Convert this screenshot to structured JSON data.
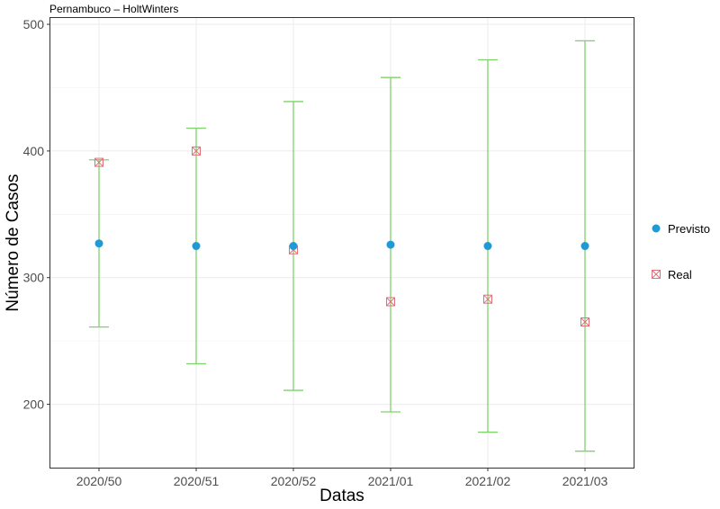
{
  "chart_data": {
    "type": "scatter",
    "title": "Pernambuco – HoltWinters",
    "xlabel": "Datas",
    "ylabel": "Número de Casos",
    "categories": [
      "2020/50",
      "2020/51",
      "2020/52",
      "2021/01",
      "2021/02",
      "2021/03"
    ],
    "ylim": [
      150,
      505
    ],
    "yticks": [
      200,
      300,
      400,
      500
    ],
    "grid": true,
    "legend_position": "right",
    "series": [
      {
        "name": "Previsto",
        "marker": "circle",
        "color": "#1f9ad6",
        "values": [
          327,
          325,
          325,
          326,
          325,
          325
        ],
        "lower": [
          261,
          232,
          211,
          194,
          178,
          163
        ],
        "upper": [
          393,
          418,
          439,
          458,
          472,
          487
        ]
      },
      {
        "name": "Real",
        "marker": "crossed-square",
        "color": "#e0707a",
        "values": [
          391,
          400,
          322,
          281,
          283,
          265
        ]
      }
    ],
    "errorbar_color": "#7fd26b"
  }
}
